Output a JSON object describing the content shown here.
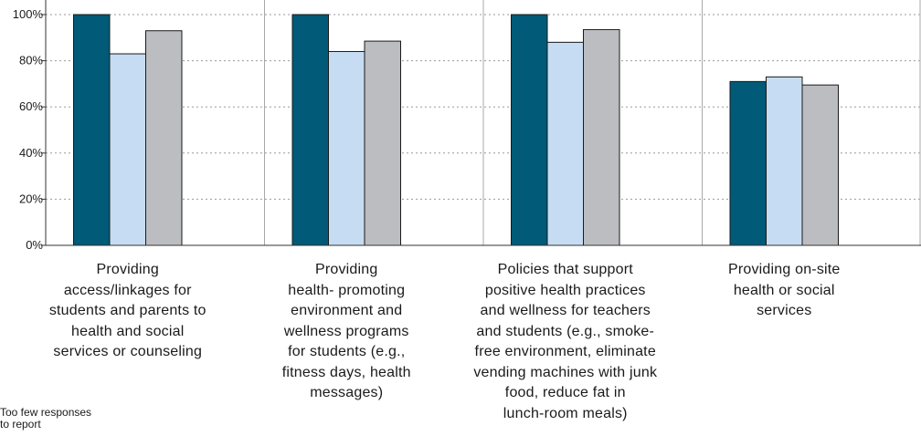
{
  "chart_data": {
    "type": "bar",
    "categories": [
      [
        "Providing",
        "access/linkages for",
        "students and parents to",
        "health and social",
        "services or counseling"
      ],
      [
        "Providing",
        "health- promoting",
        "environment and",
        "wellness programs",
        "for students (e.g.,",
        "fitness days, health",
        "messages)"
      ],
      [
        "Policies that support",
        "positive health practices",
        "and wellness for teachers",
        "and students (e.g., smoke-",
        "free environment, eliminate",
        "vending machines with junk",
        "food, reduce fat in",
        "lunch-room meals)"
      ],
      [
        "Providing on-site",
        "health or social",
        "services"
      ]
    ],
    "series": [
      {
        "color": "#005a78",
        "values": [
          100,
          100,
          100,
          71
        ]
      },
      {
        "color": "#c6dcf2",
        "values": [
          83,
          84,
          88,
          73
        ]
      },
      {
        "color": "#bcbdc1",
        "values": [
          93,
          88.5,
          93.5,
          69.5
        ]
      }
    ],
    "ylim": [
      0,
      100
    ],
    "yticks": [
      "0%",
      "20%",
      "40%",
      "60%",
      "80%",
      "100%"
    ],
    "grid": "horizontal dotted",
    "xlabel": "",
    "ylabel": ""
  },
  "note": [
    "Too few responses",
    "to report"
  ]
}
